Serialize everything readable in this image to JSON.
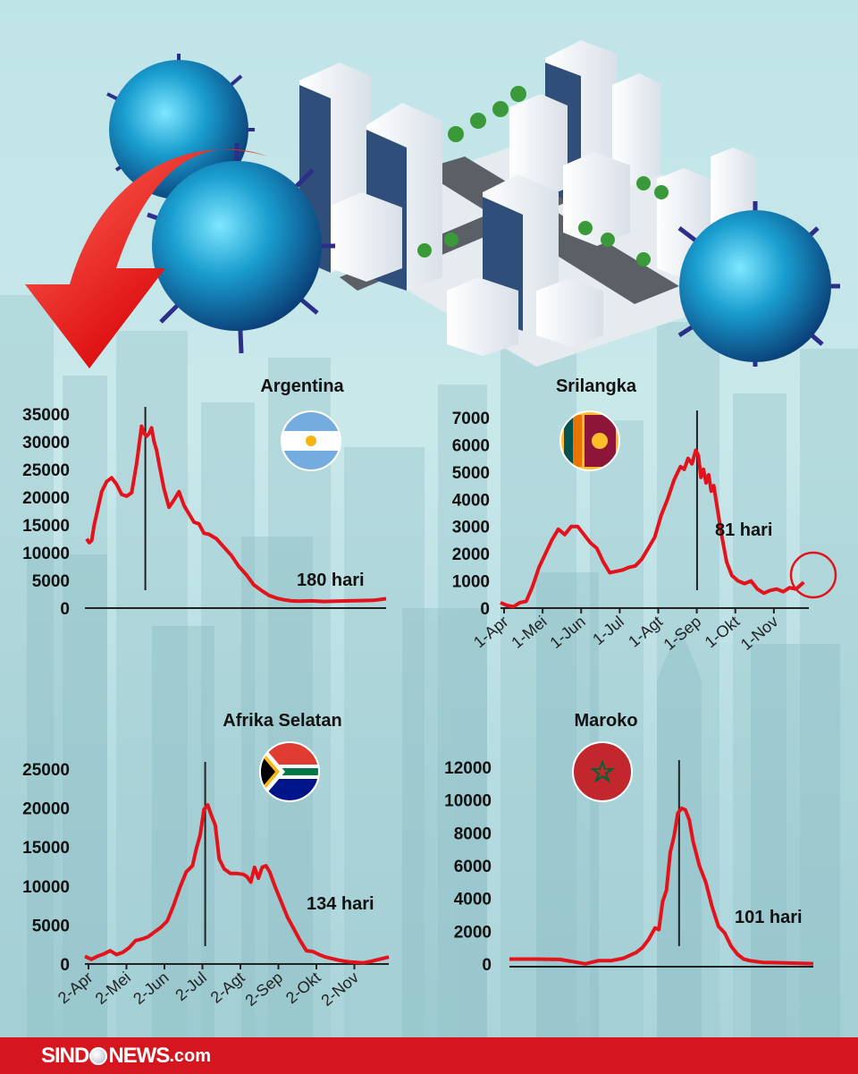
{
  "brand": {
    "logo_left": "SIND",
    "logo_right": "NEWS",
    "logo_suffix": ".com",
    "footer_color": "#d5161f"
  },
  "colors": {
    "line": "#e3121b",
    "axis": "#222222"
  },
  "chart_data": [
    {
      "id": "argentina",
      "type": "line",
      "title": "Argentina",
      "flag": "argentina-flag",
      "y_ticks": [
        "35000",
        "30000",
        "25000",
        "20000",
        "15000",
        "10000",
        "5000",
        "0"
      ],
      "ylim": [
        0,
        35000
      ],
      "x_range": [
        0,
        240
      ],
      "annotation": "180 hari",
      "peak_x": 47,
      "series": [
        {
          "x": [
            0,
            2,
            4,
            6,
            8,
            12,
            16,
            20,
            24,
            28,
            32,
            36,
            40,
            44,
            46,
            48,
            50,
            52,
            54,
            56,
            58,
            62,
            66,
            70,
            74,
            78,
            82,
            86,
            90,
            94,
            98,
            104,
            110,
            116,
            122,
            128,
            134,
            140,
            146,
            152,
            158,
            164,
            170,
            180,
            190,
            200,
            210,
            220,
            230,
            240
          ],
          "values": [
            12500,
            11800,
            12200,
            15000,
            17000,
            21000,
            22800,
            23500,
            22300,
            20500,
            20200,
            20800,
            26000,
            32800,
            31500,
            31000,
            31500,
            32500,
            30000,
            28500,
            26000,
            21500,
            18200,
            19500,
            21000,
            18500,
            17000,
            15500,
            15200,
            13500,
            13300,
            12500,
            11000,
            9500,
            7500,
            6000,
            4200,
            3200,
            2300,
            1800,
            1500,
            1300,
            1250,
            1300,
            1200,
            1250,
            1300,
            1350,
            1400,
            1700
          ]
        }
      ]
    },
    {
      "id": "srilangka",
      "type": "line",
      "title": "Srilangka",
      "flag": "srilanka-flag",
      "y_ticks": [
        "7000",
        "6000",
        "5000",
        "4000",
        "3000",
        "2000",
        "1000",
        "0"
      ],
      "x_ticks": [
        "1-Apr",
        "1-Mei",
        "1-Jun",
        "1-Jul",
        "1-Agt",
        "1-Sep",
        "1-Okt",
        "1-Nov"
      ],
      "ylim": [
        0,
        7000
      ],
      "x_range": [
        0,
        240
      ],
      "annotation": "81 hari",
      "peak_x": 153,
      "series": [
        {
          "x": [
            0,
            5,
            10,
            15,
            20,
            25,
            30,
            35,
            40,
            45,
            50,
            55,
            60,
            65,
            70,
            75,
            80,
            85,
            90,
            95,
            100,
            105,
            110,
            115,
            120,
            125,
            130,
            135,
            140,
            143,
            146,
            149,
            152,
            154,
            156,
            158,
            160,
            162,
            164,
            166,
            168,
            172,
            176,
            180,
            185,
            190,
            195,
            200,
            205,
            210,
            215,
            220,
            225,
            230,
            236
          ],
          "values": [
            200,
            100,
            50,
            200,
            250,
            800,
            1500,
            2000,
            2500,
            2900,
            2700,
            3000,
            3000,
            2700,
            2400,
            2200,
            1700,
            1300,
            1350,
            1400,
            1500,
            1550,
            1800,
            2200,
            2600,
            3400,
            4000,
            4700,
            5200,
            5100,
            5500,
            5300,
            5800,
            5600,
            4800,
            5100,
            4600,
            4900,
            4300,
            4500,
            3900,
            2700,
            1700,
            1200,
            1000,
            900,
            1000,
            700,
            550,
            650,
            700,
            600,
            750,
            700,
            950
          ]
        }
      ]
    },
    {
      "id": "afrika-selatan",
      "type": "line",
      "title": "Afrika Selatan",
      "flag": "south-africa-flag",
      "y_ticks": [
        "25000",
        "20000",
        "15000",
        "10000",
        "5000",
        "0"
      ],
      "x_ticks": [
        "2-Apr",
        "2-Mei",
        "2-Jun",
        "2-Jul",
        "2-Agt",
        "2-Sep",
        "2-Okt",
        "2-Nov"
      ],
      "ylim": [
        0,
        25000
      ],
      "x_range": [
        0,
        240
      ],
      "annotation": "134 hari",
      "peak_x": 95,
      "series": [
        {
          "x": [
            0,
            5,
            10,
            15,
            20,
            25,
            30,
            35,
            40,
            45,
            50,
            55,
            60,
            65,
            70,
            75,
            80,
            85,
            88,
            91,
            94,
            97,
            100,
            103,
            106,
            110,
            115,
            120,
            125,
            128,
            131,
            134,
            137,
            140,
            143,
            146,
            150,
            155,
            160,
            165,
            170,
            175,
            180,
            185,
            190,
            195,
            200,
            205,
            210,
            215,
            220,
            225,
            230,
            235,
            240
          ],
          "values": [
            1000,
            600,
            1000,
            1300,
            1700,
            1200,
            1500,
            2100,
            3000,
            3200,
            3500,
            4100,
            4700,
            5500,
            7500,
            9800,
            11800,
            12600,
            14800,
            16500,
            19800,
            20400,
            19000,
            17800,
            13500,
            12200,
            11600,
            11600,
            11500,
            11200,
            10500,
            12400,
            11000,
            12400,
            12600,
            11800,
            10000,
            8000,
            6000,
            4500,
            3000,
            1700,
            1600,
            1200,
            900,
            700,
            500,
            350,
            250,
            200,
            150,
            300,
            500,
            700,
            900
          ]
        }
      ]
    },
    {
      "id": "maroko",
      "type": "line",
      "title": "Maroko",
      "flag": "morocco-flag",
      "y_ticks": [
        "12000",
        "10000",
        "8000",
        "6000",
        "4000",
        "2000",
        "0"
      ],
      "ylim": [
        0,
        12000
      ],
      "x_range": [
        0,
        240
      ],
      "annotation": "101 hari",
      "peak_x": 134,
      "series": [
        {
          "x": [
            0,
            20,
            40,
            50,
            60,
            70,
            80,
            90,
            100,
            105,
            110,
            115,
            118,
            121,
            124,
            127,
            130,
            133,
            136,
            139,
            142,
            145,
            150,
            155,
            160,
            165,
            170,
            175,
            180,
            185,
            190,
            195,
            200,
            210,
            220,
            230,
            240
          ],
          "values": [
            300,
            300,
            280,
            150,
            10,
            200,
            200,
            350,
            700,
            1000,
            1500,
            2200,
            2100,
            3800,
            4500,
            6800,
            7800,
            9200,
            9500,
            9400,
            8800,
            7500,
            6000,
            5000,
            3500,
            2300,
            1900,
            1100,
            600,
            300,
            200,
            150,
            100,
            80,
            60,
            40,
            20
          ]
        }
      ]
    }
  ]
}
